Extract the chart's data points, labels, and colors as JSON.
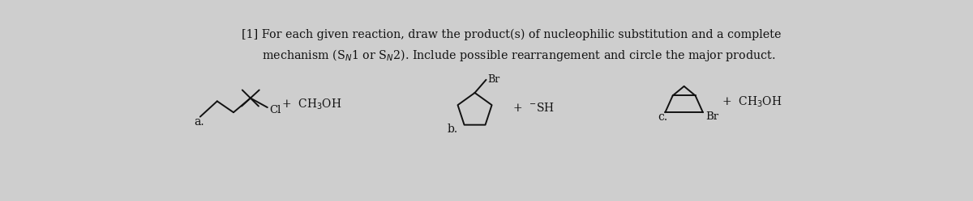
{
  "background_color": "#cecece",
  "title_line": "[1] For each given reaction, draw the product(s) of nucleophilic substitution and a complete\nmechanism (S$_N$1 or S$_N$2). Include possible rearrangement and circle the major product.",
  "title_fontsize": 10.5,
  "label_a": "a.",
  "label_b": "b.",
  "label_c": "c.",
  "text_color": "#111111",
  "lw": 1.4
}
